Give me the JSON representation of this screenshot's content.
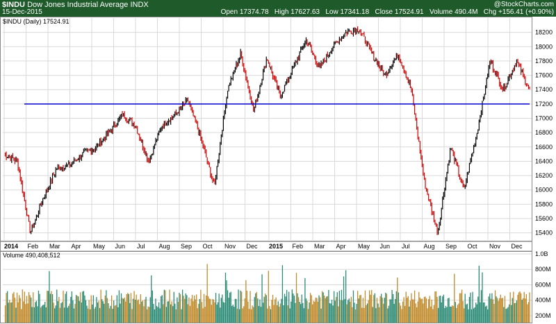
{
  "header": {
    "symbol": "$INDU",
    "name": "Dow Jones Industrial Average",
    "exchange": "INDX",
    "date": "15-Dec-2015",
    "brand": "@StockCharts.com",
    "open_label": "Open",
    "open": "17374.78",
    "high_label": "High",
    "high": "17627.63",
    "low_label": "Low",
    "low": "17341.18",
    "close_label": "Close",
    "close": "17524.91",
    "volume_label": "Volume",
    "volume": "490.4M",
    "chg_label": "Chg",
    "chg": "+156.41 (+0.90%)"
  },
  "price_legend": "$INDU (Daily) 17524.91",
  "volume_legend": "Volume 490,408,512",
  "colors": {
    "header_bg": "#1e5a2a",
    "up": "#000000",
    "down": "#cc0000",
    "trendline": "#0000cc",
    "vol_up": "#2a8a74",
    "vol_down": "#c08a2a",
    "grid": "#d9d9d9"
  },
  "chart_data": [
    {
      "type": "line",
      "title": "$INDU (Daily) 17524.91",
      "x_labels": [
        "2014",
        "Feb",
        "Mar",
        "Apr",
        "May",
        "Jun",
        "Jul",
        "Aug",
        "Sep",
        "Oct",
        "Nov",
        "Dec",
        "2015",
        "Feb",
        "Mar",
        "Apr",
        "May",
        "Jun",
        "Jul",
        "Aug",
        "Sep",
        "Oct",
        "Nov",
        "Dec"
      ],
      "ylim": [
        15300,
        18400
      ],
      "y_ticks": [
        15400,
        15600,
        15800,
        16000,
        16200,
        16400,
        16600,
        16800,
        17000,
        17200,
        17400,
        17600,
        17800,
        18000,
        18200
      ],
      "trendline": 17200,
      "series": [
        {
          "x": [
            "2014-01",
            "2014-01",
            "2014-02",
            "2014-02",
            "2014-03",
            "2014-04",
            "2014-04",
            "2014-05",
            "2014-06",
            "2014-07",
            "2014-07",
            "2014-08",
            "2014-08",
            "2014-09",
            "2014-09",
            "2014-10",
            "2014-10",
            "2014-11",
            "2014-12",
            "2014-12",
            "2014-12",
            "2015-01",
            "2015-02",
            "2015-03",
            "2015-03",
            "2015-04",
            "2015-05",
            "2015-05",
            "2015-06",
            "2015-07",
            "2015-07",
            "2015-08",
            "2015-08",
            "2015-08",
            "2015-09",
            "2015-09",
            "2015-10",
            "2015-11",
            "2015-11",
            "2015-12",
            "2015-12"
          ],
          "values": [
            16500,
            16400,
            15400,
            15900,
            16300,
            16350,
            16500,
            16600,
            16800,
            17050,
            16900,
            16400,
            16900,
            17050,
            17250,
            16700,
            16050,
            17400,
            17900,
            17100,
            17850,
            17300,
            17700,
            18100,
            17700,
            18000,
            18200,
            18250,
            17900,
            17600,
            17900,
            17400,
            16100,
            15400,
            16600,
            16000,
            16800,
            17800,
            17400,
            17800,
            17400
          ]
        }
      ]
    },
    {
      "type": "bar",
      "title": "Volume 490,408,512",
      "y_ticks_labels": [
        "200M",
        "400M",
        "600M",
        "800M",
        "1.0B"
      ],
      "y_ticks": [
        200,
        400,
        600,
        800,
        1000
      ],
      "ylim": [
        110,
        1000
      ]
    }
  ]
}
